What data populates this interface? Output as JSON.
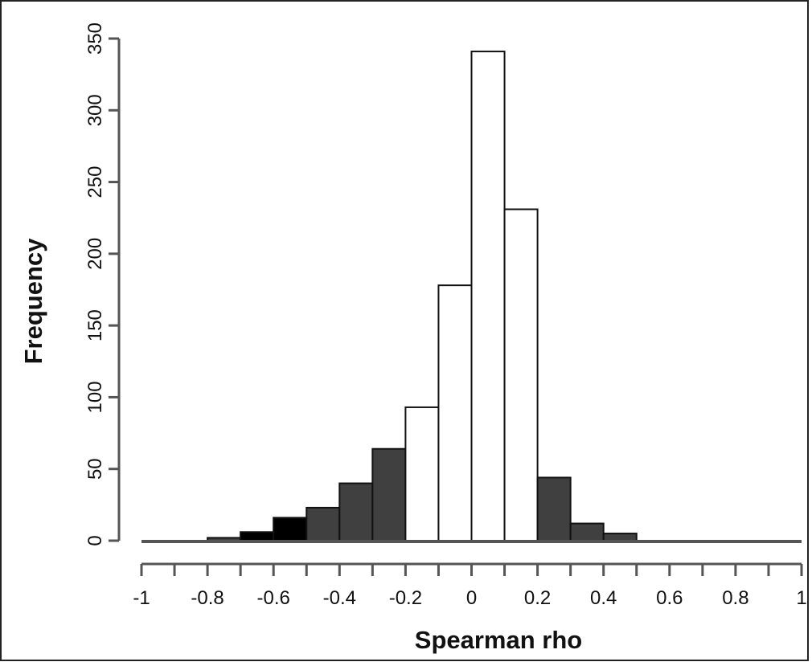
{
  "chart_data": {
    "type": "bar",
    "xlabel": "Spearman rho",
    "ylabel": "Frequency",
    "xlim": [
      -1,
      1
    ],
    "ylim": [
      0,
      350
    ],
    "grid": false,
    "x_ticks": [
      "-1",
      "-0.8",
      "-0.6",
      "-0.4",
      "-0.2",
      "0",
      "0.2",
      "0.4",
      "0.6",
      "0.8",
      "1"
    ],
    "x_tick_values": [
      -1,
      -0.8,
      -0.6,
      -0.4,
      -0.2,
      0,
      0.2,
      0.4,
      0.6,
      0.8,
      1
    ],
    "y_ticks": [
      "0",
      "50",
      "100",
      "150",
      "200",
      "250",
      "300",
      "350"
    ],
    "y_tick_values": [
      0,
      50,
      100,
      150,
      200,
      250,
      300,
      350
    ],
    "bin_edges": [
      -1,
      -0.9,
      -0.8,
      -0.7,
      -0.6,
      -0.5,
      -0.4,
      -0.3,
      -0.2,
      -0.1,
      0,
      0.1,
      0.2,
      0.3,
      0.4,
      0.5,
      0.6,
      0.7,
      0.8,
      0.9,
      1
    ],
    "values": [
      0,
      0,
      2,
      6,
      16,
      23,
      40,
      64,
      93,
      178,
      341,
      231,
      44,
      12,
      5,
      0,
      0,
      0,
      0,
      0
    ],
    "bar_colors": [
      "#404040",
      "#404040",
      "#404040",
      "#000000",
      "#000000",
      "#404040",
      "#404040",
      "#404040",
      "#ffffff",
      "#ffffff",
      "#ffffff",
      "#ffffff",
      "#404040",
      "#404040",
      "#404040",
      "#404040",
      "#404040",
      "#404040",
      "#404040",
      "#404040"
    ]
  }
}
